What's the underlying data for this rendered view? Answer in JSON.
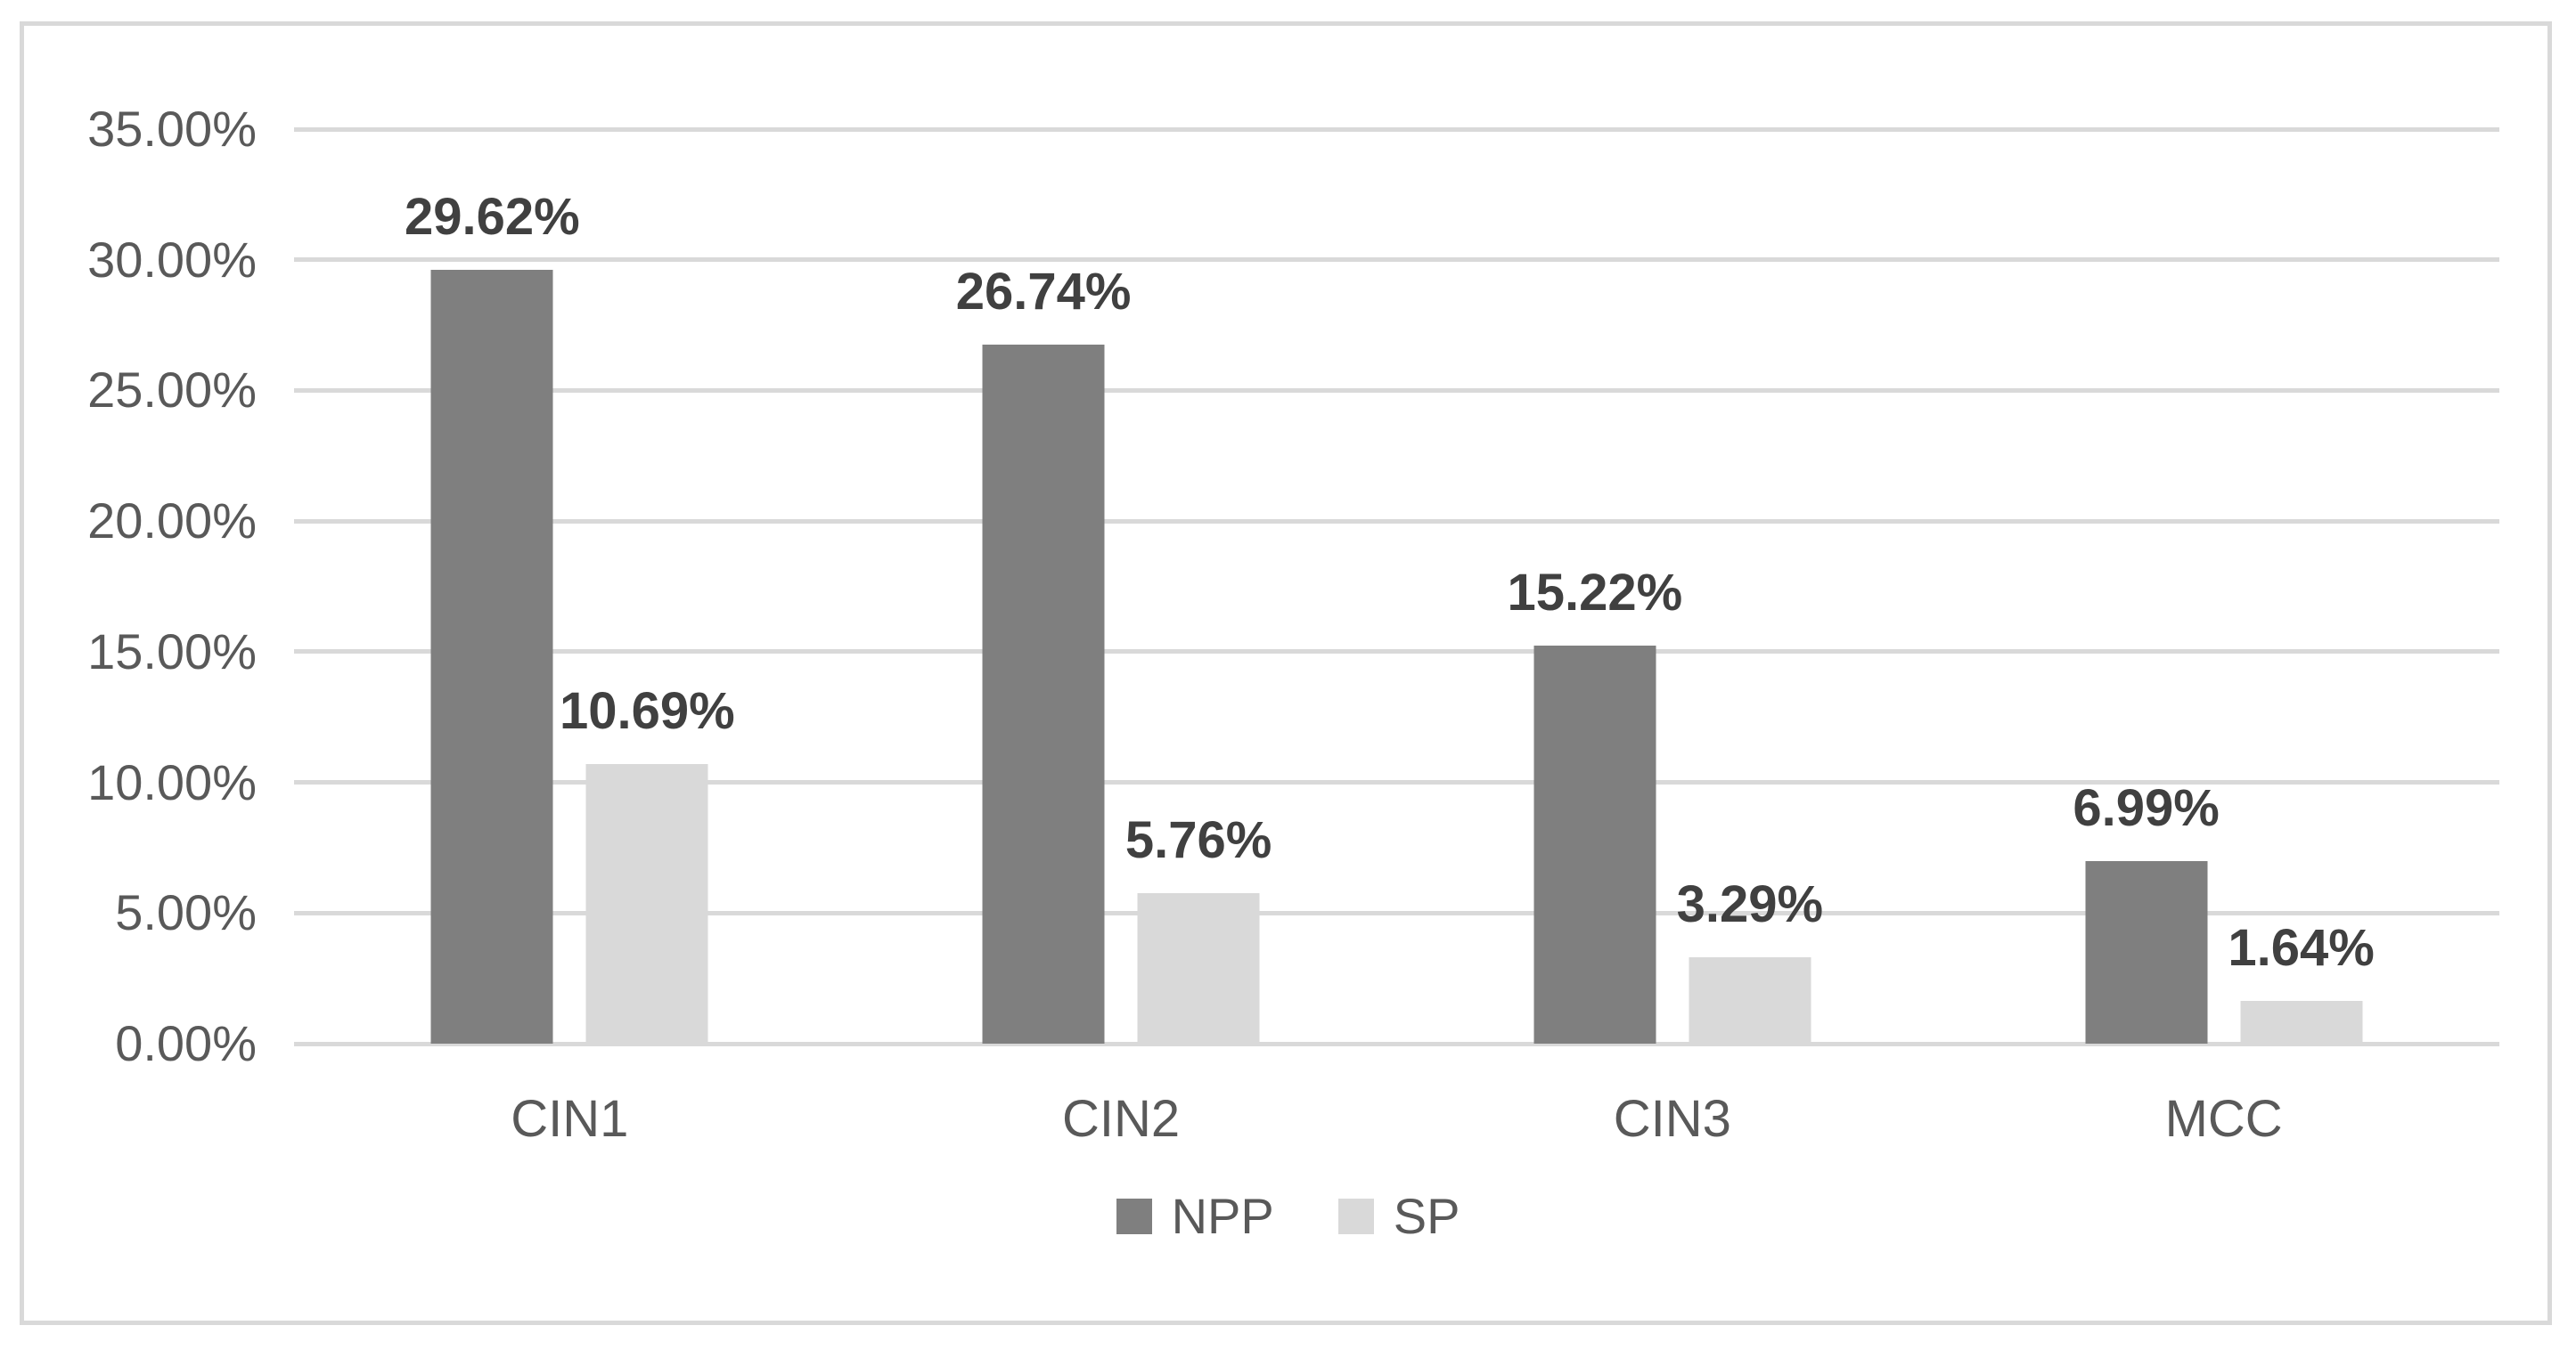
{
  "figure": {
    "background": "#ffffff",
    "border_color": "#d9d9d9"
  },
  "chart_data": {
    "type": "bar",
    "title": "",
    "categories": [
      "CIN1",
      "CIN2",
      "CIN3",
      "MCC"
    ],
    "series": [
      {
        "name": "NPP",
        "color": "#7f7f7f",
        "values": [
          29.62,
          26.74,
          15.22,
          6.99
        ],
        "data_labels": [
          "29.62%",
          "26.74%",
          "15.22%",
          "6.99%"
        ]
      },
      {
        "name": "SP",
        "color": "#d9d9d9",
        "values": [
          10.69,
          5.76,
          3.29,
          1.64
        ],
        "data_labels": [
          "10.69%",
          "5.76%",
          "3.29%",
          "1.64%"
        ]
      }
    ],
    "y_axis": {
      "min": 0,
      "max": 35,
      "step": 5,
      "tick_labels": [
        "0.00%",
        "5.00%",
        "10.00%",
        "15.00%",
        "20.00%",
        "25.00%",
        "30.00%",
        "35.00%"
      ]
    },
    "x_axis_label": "",
    "y_axis_label": "",
    "grid": true,
    "gridline_color": "#d9d9d9",
    "legend_position": "bottom",
    "text_colors": {
      "axis_text": "#595959",
      "data_label_text": "#404040"
    }
  }
}
